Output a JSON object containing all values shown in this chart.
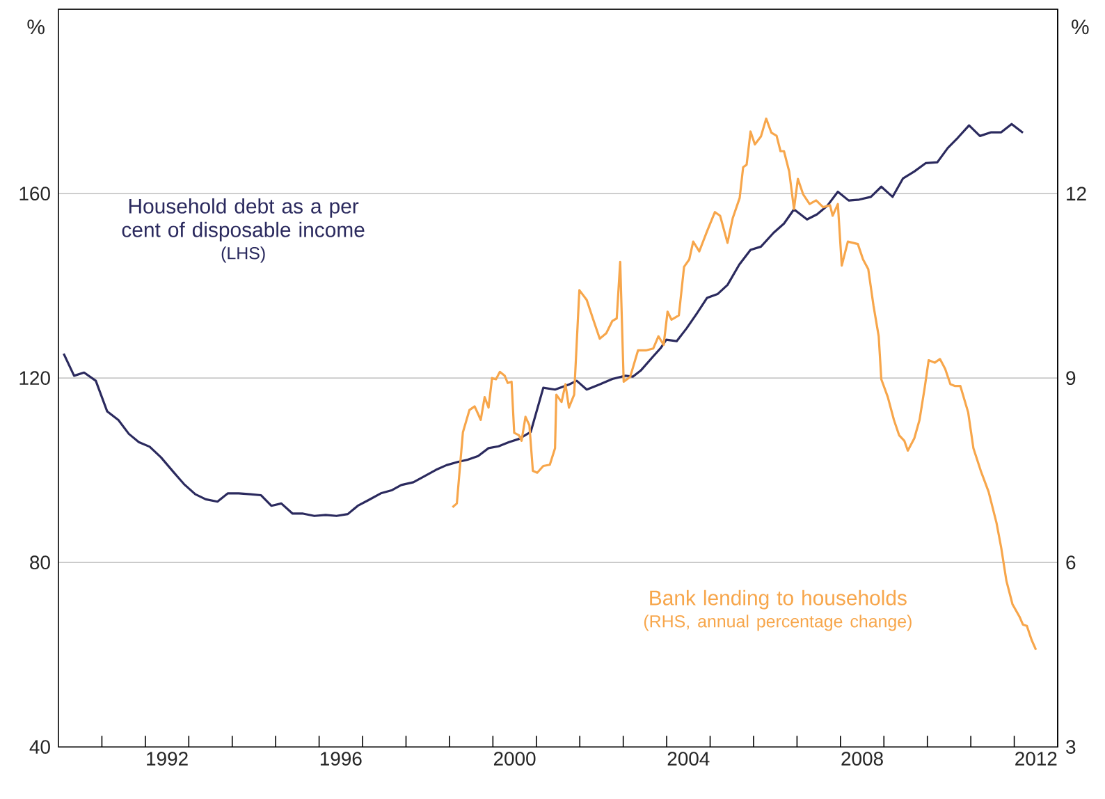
{
  "chart_data": {
    "type": "line",
    "ylabel": "%",
    "y2label": "%",
    "xlim": [
      1990,
      2013
    ],
    "xticks": [
      {
        "value": 1991,
        "label": null
      },
      {
        "value": 1992,
        "label": null
      },
      {
        "value": 1992.5,
        "label": "1992"
      },
      {
        "value": 1993,
        "label": null
      },
      {
        "value": 1994,
        "label": null
      },
      {
        "value": 1995,
        "label": null
      },
      {
        "value": 1996,
        "label": null
      },
      {
        "value": 1996.5,
        "label": "1996"
      },
      {
        "value": 1997,
        "label": null
      },
      {
        "value": 1998,
        "label": null
      },
      {
        "value": 1999,
        "label": null
      },
      {
        "value": 2000,
        "label": null
      },
      {
        "value": 2000.5,
        "label": "2000"
      },
      {
        "value": 2001,
        "label": null
      },
      {
        "value": 2002,
        "label": null
      },
      {
        "value": 2003,
        "label": null
      },
      {
        "value": 2004,
        "label": null
      },
      {
        "value": 2004.5,
        "label": "2004"
      },
      {
        "value": 2005,
        "label": null
      },
      {
        "value": 2006,
        "label": null
      },
      {
        "value": 2007,
        "label": null
      },
      {
        "value": 2008,
        "label": null
      },
      {
        "value": 2008.5,
        "label": "2008"
      },
      {
        "value": 2009,
        "label": null
      },
      {
        "value": 2010,
        "label": null
      },
      {
        "value": 2011,
        "label": null
      },
      {
        "value": 2012,
        "label": null
      },
      {
        "value": 2012.5,
        "label": "2012"
      }
    ],
    "ylim": [
      40,
      200
    ],
    "yticks": [
      40,
      80,
      120,
      160
    ],
    "y2lim": [
      3,
      15
    ],
    "y2ticks": [
      3,
      6,
      9,
      12
    ],
    "grid": "y",
    "legend": false,
    "line_style": "solid",
    "annotations": [
      "(LHS)",
      "(RHS, annual percentage change)"
    ],
    "series": [
      {
        "name": "Household debt as a per cent of disposable income",
        "color": "#2b2a5e",
        "x": [
          1990.12,
          1990.36,
          1990.59,
          1990.86,
          1991.12,
          1991.38,
          1991.62,
          1991.85,
          1992.1,
          1992.36,
          1992.65,
          1992.89,
          1993.15,
          1993.39,
          1993.66,
          1993.9,
          1994.15,
          1994.42,
          1994.66,
          1994.9,
          1995.13,
          1995.39,
          1995.63,
          1995.89,
          1996.15,
          1996.4,
          1996.66,
          1996.89,
          1997.13,
          1997.42,
          1997.68,
          1997.89,
          1998.17,
          1998.42,
          1998.69,
          1998.93,
          1999.19,
          1999.42,
          1999.66,
          1999.9,
          2000.13,
          2000.37,
          2000.6,
          2000.87,
          2001.16,
          2001.43,
          2001.75,
          2001.93,
          2002.16,
          2002.45,
          2002.75,
          2003.05,
          2003.22,
          2003.4,
          2003.69,
          2003.87,
          2003.99,
          2004.23,
          2004.46,
          2004.7,
          2004.93,
          2005.17,
          2005.4,
          2005.67,
          2005.93,
          2006.17,
          2006.46,
          2006.7,
          2006.93,
          2007.23,
          2007.46,
          2007.7,
          2007.94,
          2008.19,
          2008.43,
          2008.7,
          2008.94,
          2009.2,
          2009.44,
          2009.7,
          2009.96,
          2010.23,
          2010.47,
          2010.7,
          2010.96,
          2011.21,
          2011.47,
          2011.7,
          2011.94,
          2012.2
        ],
        "values": [
          125.3,
          120.5,
          121.2,
          119.4,
          112.8,
          110.9,
          107.9,
          106.1,
          105.1,
          102.8,
          99.6,
          97.0,
          94.8,
          93.7,
          93.2,
          95.0,
          95.0,
          94.8,
          94.6,
          92.3,
          92.8,
          90.6,
          90.6,
          90.1,
          90.3,
          90.1,
          90.5,
          92.3,
          93.5,
          95.0,
          95.7,
          96.8,
          97.4,
          98.7,
          100.1,
          101.1,
          101.8,
          102.3,
          103.1,
          104.8,
          105.2,
          106.1,
          106.8,
          108.3,
          117.9,
          117.5,
          118.6,
          119.4,
          117.5,
          118.6,
          119.8,
          120.5,
          120.3,
          121.6,
          124.7,
          126.6,
          128.3,
          128.0,
          130.8,
          134.1,
          137.4,
          138.2,
          140.2,
          144.6,
          147.8,
          148.5,
          151.5,
          153.5,
          156.6,
          154.4,
          155.5,
          157.4,
          160.4,
          158.5,
          158.7,
          159.3,
          161.5,
          159.3,
          163.3,
          164.8,
          166.6,
          166.8,
          169.9,
          172.1,
          174.8,
          172.5,
          173.3,
          173.3,
          175.1,
          173.2
        ]
      },
      {
        "name": "Bank lending to households",
        "color": "#f7a64b",
        "axis": "y2",
        "x": [
          1999.07,
          1999.17,
          1999.31,
          1999.46,
          1999.58,
          1999.72,
          1999.81,
          1999.9,
          1999.98,
          2000.07,
          2000.16,
          2000.27,
          2000.34,
          2000.43,
          2000.49,
          2000.6,
          2000.66,
          2000.75,
          2000.84,
          2000.92,
          2001.02,
          2001.16,
          2001.31,
          2001.43,
          2001.46,
          2001.58,
          2001.67,
          2001.75,
          2001.87,
          2001.99,
          2002.16,
          2002.31,
          2002.46,
          2002.61,
          2002.75,
          2002.85,
          2002.93,
          2003.01,
          2003.16,
          2003.34,
          2003.52,
          2003.69,
          2003.81,
          2003.93,
          2004.02,
          2004.11,
          2004.28,
          2004.4,
          2004.52,
          2004.61,
          2004.75,
          2004.93,
          2005.11,
          2005.23,
          2005.4,
          2005.52,
          2005.68,
          2005.76,
          2005.84,
          2005.93,
          2006.03,
          2006.17,
          2006.29,
          2006.41,
          2006.53,
          2006.62,
          2006.7,
          2006.82,
          2006.93,
          2007.02,
          2007.14,
          2007.29,
          2007.44,
          2007.6,
          2007.76,
          2007.82,
          2007.94,
          2008.03,
          2008.17,
          2008.4,
          2008.52,
          2008.64,
          2008.76,
          2008.88,
          2008.94,
          2009.09,
          2009.23,
          2009.35,
          2009.47,
          2009.55,
          2009.7,
          2009.82,
          2009.94,
          2010.03,
          2010.17,
          2010.29,
          2010.41,
          2010.53,
          2010.64,
          2010.76,
          2010.94,
          2011.06,
          2011.23,
          2011.41,
          2011.59,
          2011.7,
          2011.82,
          2011.96,
          2012.12,
          2012.2,
          2012.29,
          2012.4,
          2012.5
        ],
        "values": [
          6.9,
          6.96,
          8.12,
          8.48,
          8.54,
          8.32,
          8.69,
          8.52,
          9.0,
          8.98,
          9.1,
          9.04,
          8.92,
          8.94,
          8.11,
          8.07,
          7.98,
          8.37,
          8.23,
          7.49,
          7.46,
          7.57,
          7.59,
          7.86,
          8.73,
          8.61,
          8.9,
          8.52,
          8.73,
          10.43,
          10.27,
          9.95,
          9.64,
          9.73,
          9.93,
          9.97,
          10.89,
          8.94,
          9.02,
          9.45,
          9.45,
          9.48,
          9.68,
          9.54,
          10.08,
          9.95,
          10.02,
          10.81,
          10.93,
          11.22,
          11.06,
          11.39,
          11.7,
          11.64,
          11.2,
          11.6,
          11.93,
          12.43,
          12.47,
          13.01,
          12.8,
          12.93,
          13.22,
          12.99,
          12.94,
          12.69,
          12.69,
          12.36,
          11.75,
          12.24,
          11.99,
          11.83,
          11.89,
          11.78,
          11.81,
          11.64,
          11.83,
          10.83,
          11.22,
          11.18,
          10.93,
          10.77,
          10.18,
          9.68,
          8.98,
          8.69,
          8.32,
          8.07,
          7.98,
          7.82,
          8.02,
          8.32,
          8.85,
          9.29,
          9.25,
          9.31,
          9.15,
          8.9,
          8.87,
          8.87,
          8.44,
          7.86,
          7.49,
          7.15,
          6.65,
          6.24,
          5.7,
          5.32,
          5.12,
          4.99,
          4.97,
          4.74,
          4.58
        ]
      }
    ]
  }
}
